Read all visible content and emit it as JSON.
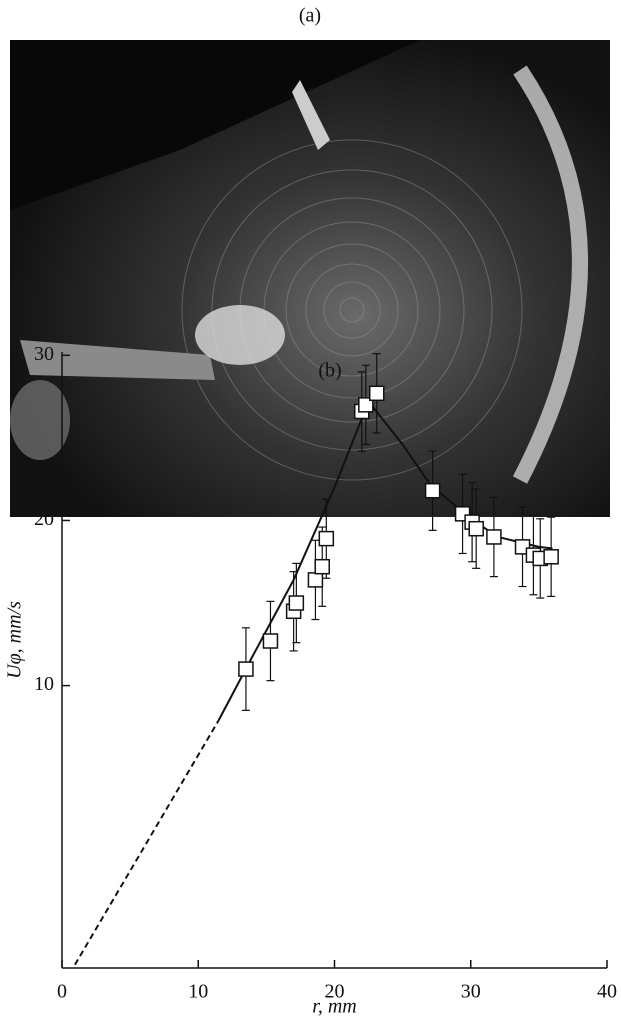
{
  "panel_a": {
    "label": "(a)"
  },
  "chart_data": {
    "type": "scatter",
    "panel_label": "(b)",
    "x_label": "r, mm",
    "y_label": "Uφ, mm/s",
    "xlim": [
      0,
      40
    ],
    "ylim": [
      -7.1,
      30.2
    ],
    "xticks": [
      0,
      10,
      20,
      30,
      40
    ],
    "yticks": [
      10,
      20,
      30
    ],
    "series": [
      {
        "x": [
          13.5,
          15.3,
          17.0,
          17.2,
          18.6,
          19.1,
          19.4,
          22.0,
          22.3,
          23.1,
          27.2,
          29.4,
          30.1,
          30.4,
          31.7,
          33.8,
          34.6,
          35.1,
          35.9
        ],
        "values": [
          11.0,
          12.7,
          14.5,
          15.0,
          16.4,
          17.2,
          18.9,
          26.6,
          27.0,
          27.7,
          21.8,
          20.4,
          19.9,
          19.5,
          19.0,
          18.4,
          17.9,
          17.7,
          17.8
        ],
        "errors": [
          2.5,
          2.4,
          2.4,
          2.4,
          2.4,
          2.4,
          2.4,
          2.4,
          2.4,
          2.4,
          2.4,
          2.4,
          2.4,
          2.4,
          2.4,
          2.4,
          2.4,
          2.4,
          2.4
        ],
        "color": "#111111"
      }
    ],
    "fit": {
      "x": [
        11.5,
        14,
        17,
        20,
        22.5,
        25,
        27,
        30,
        32,
        35,
        36
      ],
      "values": [
        7.9,
        11.8,
        16.4,
        22.0,
        27.2,
        24.6,
        22.2,
        20.1,
        19.0,
        18.4,
        18.3
      ]
    },
    "extrapolation": {
      "x": [
        0.95,
        11.5
      ],
      "values": [
        -6.9,
        7.9
      ]
    }
  }
}
